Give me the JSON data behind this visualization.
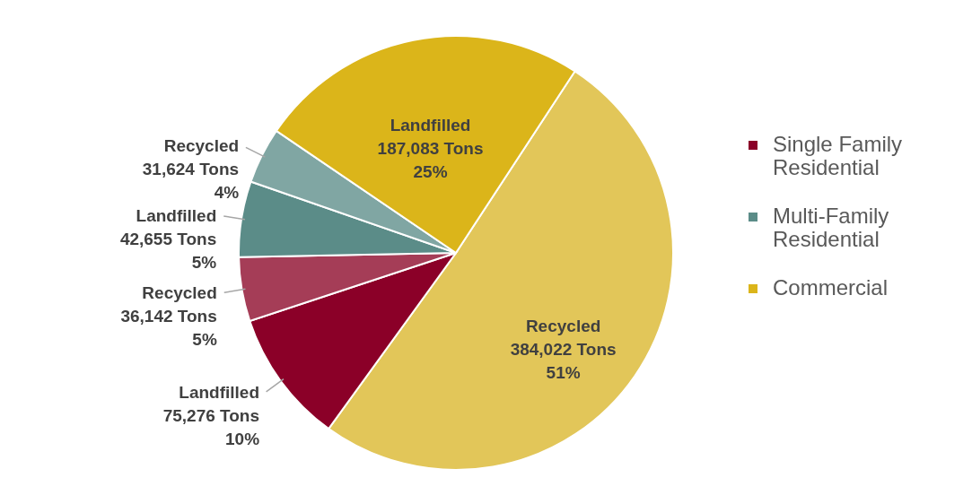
{
  "chart_data": {
    "type": "pie",
    "categories": [
      null,
      "Single Family Residential",
      null,
      "Multi-Family Residential",
      null,
      "Commercial"
    ],
    "values": [
      384022,
      75276,
      36142,
      42655,
      31624,
      187083
    ],
    "colors": [
      "#e2c659",
      "#8b0028",
      "#a53d57",
      "#5b8c88",
      "#80a6a3",
      "#dbb51a"
    ],
    "value_labels": [
      "Recycled\n384,022 Tons\n51%",
      "Landfilled\n75,276 Tons\n10%",
      "Recycled\n36,142 Tons\n5%",
      "Landfilled\n42,655 Tons\n5%",
      "Recycled\n31,624 Tons\n4%",
      "Landfilled\n187,083 Tons\n25%"
    ],
    "legend": "right"
  }
}
